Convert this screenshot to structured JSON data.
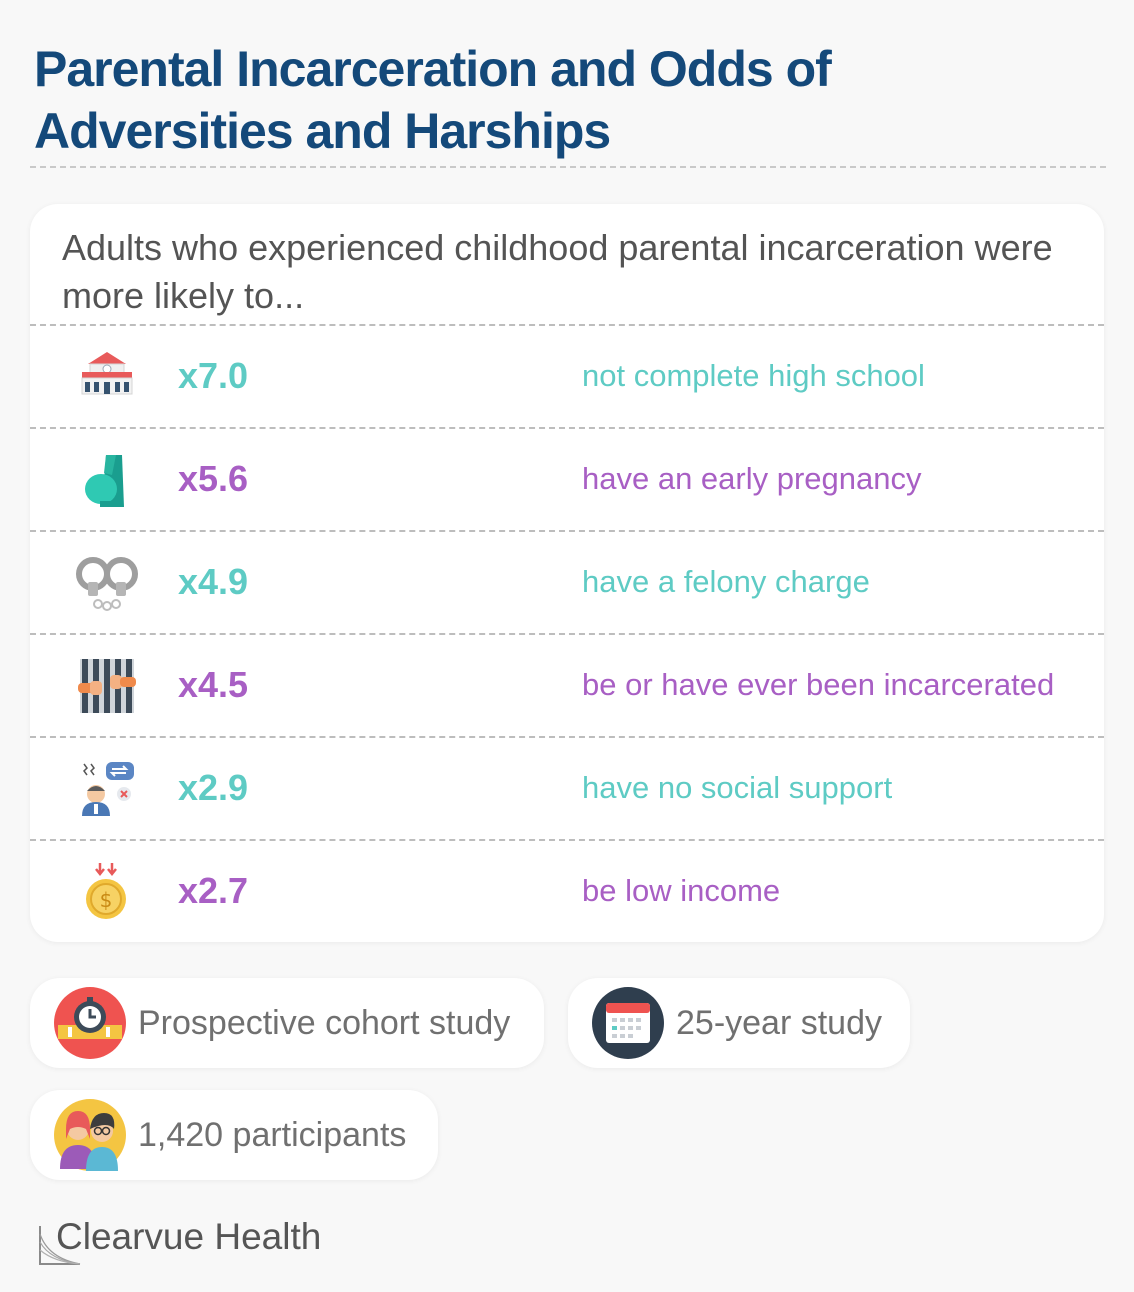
{
  "title": "Parental Incarceration and Odds of Adversities and Harships",
  "intro": "Adults who experienced childhood parental incarceration were more likely to...",
  "rows": [
    {
      "factor": "x7.0",
      "outcome": "not complete high school",
      "icon": "school-building-icon",
      "color": "#5ecbc4"
    },
    {
      "factor": "x5.6",
      "outcome": "have an early pregnancy",
      "icon": "pregnancy-icon",
      "color": "#a85fc4"
    },
    {
      "factor": "x4.9",
      "outcome": "have a felony charge",
      "icon": "handcuffs-icon",
      "color": "#5ecbc4"
    },
    {
      "factor": "x4.5",
      "outcome": "be or have ever been incarcerated",
      "icon": "prison-bars-icon",
      "color": "#a85fc4"
    },
    {
      "factor": "x2.9",
      "outcome": "have no social support",
      "icon": "isolated-person-icon",
      "color": "#5ecbc4"
    },
    {
      "factor": "x2.7",
      "outcome": "be low income",
      "icon": "falling-coin-icon",
      "color": "#a85fc4"
    }
  ],
  "study": {
    "design": "Prospective cohort study",
    "duration": "25-year study",
    "participants": "1,420 participants"
  },
  "brand": "Clearvue Health"
}
